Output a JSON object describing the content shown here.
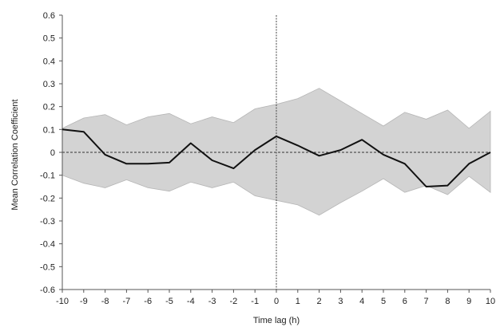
{
  "chart_data": {
    "type": "line",
    "title": "",
    "xlabel": "Time lag (h)",
    "ylabel": "Mean Correlation Coefficient",
    "xlim": [
      -10,
      10
    ],
    "ylim": [
      -0.6,
      0.6
    ],
    "x_ticks": [
      "-10",
      "-9",
      "-8",
      "-7",
      "-6",
      "-5",
      "-4",
      "-3",
      "-2",
      "-1",
      "0",
      "1",
      "2",
      "3",
      "4",
      "5",
      "6",
      "7",
      "8",
      "9",
      "10"
    ],
    "y_ticks": [
      "0.6",
      "0.5",
      "0.4",
      "0.3",
      "0.2",
      "0.1",
      "0",
      "-0.1",
      "-0.2",
      "-0.3",
      "-0.4",
      "-0.5",
      "-0.6"
    ],
    "grid": false,
    "legend": "none",
    "x": [
      -10,
      -9,
      -8,
      -7,
      -6,
      -5,
      -4,
      -3,
      -2,
      -1,
      0,
      1,
      2,
      3,
      4,
      5,
      6,
      7,
      8,
      9,
      10
    ],
    "series": [
      {
        "values": [
          0.1,
          0.09,
          -0.01,
          -0.05,
          -0.05,
          -0.045,
          0.04,
          -0.035,
          -0.07,
          0.01,
          0.07,
          0.03,
          -0.015,
          0.01,
          0.055,
          -0.01,
          -0.05,
          -0.15,
          -0.145,
          -0.05,
          0.0
        ],
        "color": "#111111"
      }
    ],
    "band": {
      "upper": [
        0.105,
        0.15,
        0.165,
        0.12,
        0.155,
        0.17,
        0.125,
        0.155,
        0.13,
        0.19,
        0.21,
        0.235,
        0.28,
        0.225,
        0.17,
        0.115,
        0.175,
        0.145,
        0.185,
        0.105,
        0.18
      ],
      "lower": [
        -0.1,
        -0.135,
        -0.155,
        -0.12,
        -0.155,
        -0.17,
        -0.13,
        -0.155,
        -0.13,
        -0.19,
        -0.21,
        -0.23,
        -0.275,
        -0.22,
        -0.17,
        -0.115,
        -0.175,
        -0.145,
        -0.185,
        -0.105,
        -0.175
      ],
      "color": "#d3d3d3"
    },
    "reference_lines": {
      "zero_line": "dashed",
      "vertical_at_x": 0
    }
  }
}
